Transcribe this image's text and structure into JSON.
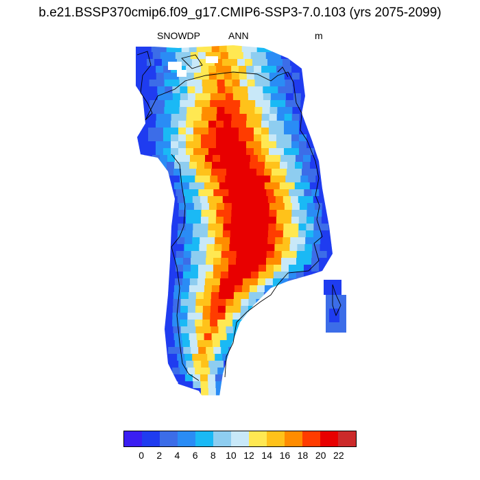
{
  "title": "b.e21.BSSP370cmip6.f09_g17.CMIP6-SSP3-7.0.103 (yrs 2075-2099)",
  "subtitle": {
    "variable": "SNOWDP",
    "season": "ANN",
    "units": "m"
  },
  "colors": {
    "levels": [
      "#3a1ef2",
      "#1f3cf0",
      "#3c6de8",
      "#2a8cf5",
      "#1ab9f5",
      "#8ecdf0",
      "#c8e8f8",
      "#ffe852",
      "#ffc21a",
      "#ff8c00",
      "#ff3c00",
      "#e80000",
      "#cc2a2a"
    ],
    "coastline": "#000000"
  },
  "colorbar": {
    "tick_labels": [
      "0",
      "2",
      "4",
      "6",
      "8",
      "10",
      "12",
      "14",
      "16",
      "18",
      "20",
      "22"
    ]
  },
  "chart_data": {
    "type": "heatmap",
    "title": "b.e21.BSSP370cmip6.f09_g17.CMIP6-SSP3-7.0.103 (yrs 2075-2099)",
    "variable": "SNOWDP",
    "season": "ANN",
    "units": "m",
    "region": "Greenland",
    "legend_bins": [
      "<0",
      "0-2",
      "2-4",
      "4-6",
      "6-8",
      "8-10",
      "10-12",
      "12-14",
      "14-16",
      "16-18",
      "18-20",
      "20-22",
      ">22"
    ],
    "value_range": [
      0,
      22
    ]
  }
}
